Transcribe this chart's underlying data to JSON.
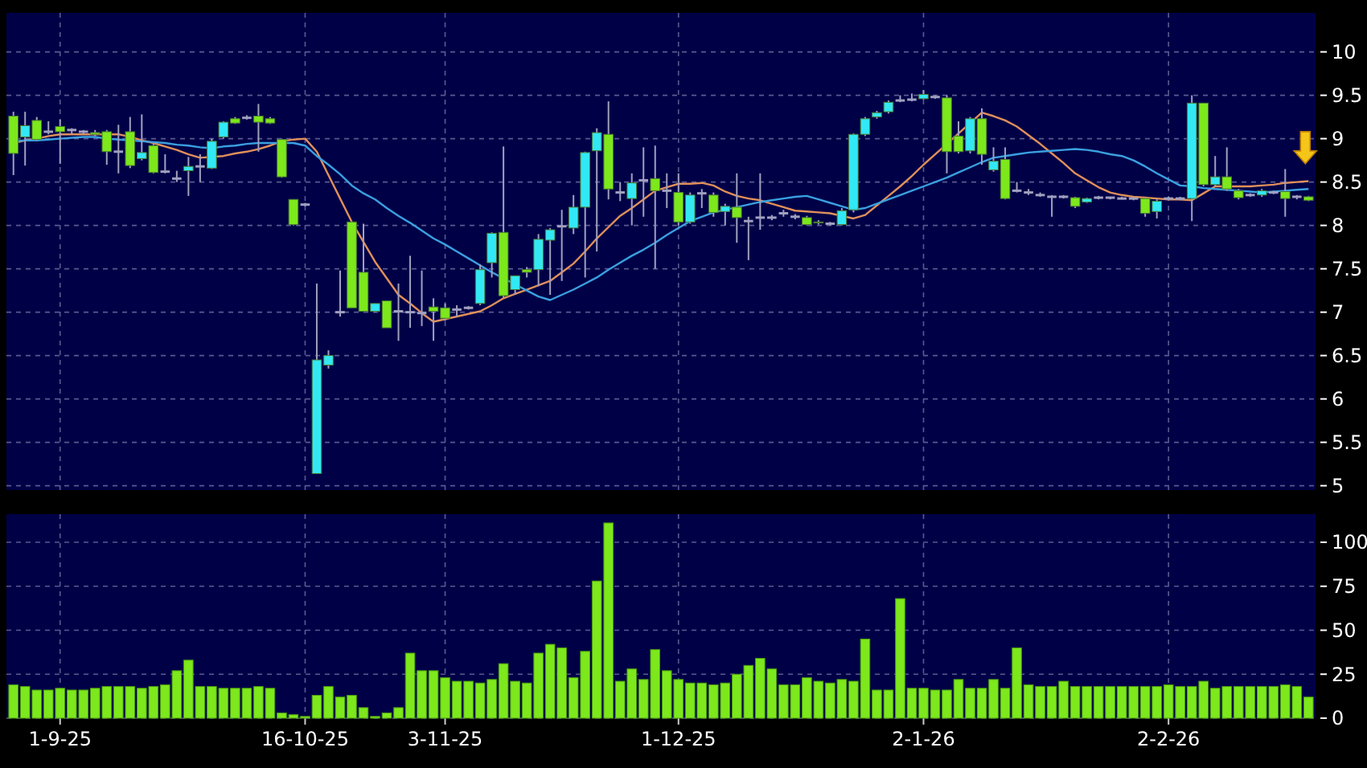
{
  "chart_data": [
    {
      "type": "candlestick",
      "categories": [
        null,
        null,
        null,
        null,
        null,
        null,
        null,
        null,
        null,
        null,
        null,
        null,
        null,
        null,
        null,
        null,
        null,
        null,
        null,
        null,
        null,
        null,
        null,
        null,
        null,
        null,
        null,
        null,
        null,
        null,
        null,
        null,
        null,
        null,
        null,
        null,
        null,
        null,
        null,
        null,
        null,
        null,
        null,
        null,
        null,
        null,
        null,
        null,
        null,
        null,
        null,
        null,
        null,
        null,
        null,
        null,
        null,
        null,
        null,
        null,
        null,
        null,
        null,
        null,
        null,
        null,
        null,
        null,
        null,
        null,
        null,
        null,
        null,
        null,
        null,
        null,
        null,
        null,
        null,
        null,
        null,
        null,
        null,
        null,
        null,
        null,
        null,
        null,
        null,
        null,
        null,
        null,
        null,
        null,
        null,
        null,
        null,
        null,
        null,
        null,
        null,
        null,
        null,
        null,
        null,
        null,
        null,
        null,
        null,
        null,
        null,
        null
      ],
      "ohlc": [
        [
          9.26,
          9.31,
          8.58,
          8.83
        ],
        [
          9.02,
          9.31,
          8.69,
          9.15
        ],
        [
          9.21,
          9.25,
          8.98,
          8.99
        ],
        [
          9.08,
          9.2,
          9.05,
          9.08
        ],
        [
          9.14,
          9.22,
          8.71,
          9.08
        ],
        [
          9.1,
          9.12,
          9.05,
          9.1
        ],
        [
          9.08,
          9.1,
          9.05,
          9.08
        ],
        [
          9.07,
          9.1,
          9.03,
          9.05
        ],
        [
          9.08,
          9.1,
          8.7,
          8.85
        ],
        [
          8.85,
          9.16,
          8.6,
          8.85
        ],
        [
          9.08,
          9.25,
          8.66,
          8.69
        ],
        [
          8.77,
          9.28,
          8.75,
          8.84
        ],
        [
          8.92,
          8.94,
          8.6,
          8.61
        ],
        [
          8.62,
          8.82,
          8.6,
          8.62
        ],
        [
          8.54,
          8.63,
          8.5,
          8.54
        ],
        [
          8.63,
          8.79,
          8.34,
          8.68
        ],
        [
          8.68,
          8.82,
          8.5,
          8.68
        ],
        [
          8.66,
          9.0,
          8.65,
          8.97
        ],
        [
          9.02,
          9.2,
          9.0,
          9.19
        ],
        [
          9.23,
          9.25,
          9.17,
          9.18
        ],
        [
          9.24,
          9.27,
          9.22,
          9.24
        ],
        [
          9.26,
          9.4,
          8.85,
          9.19
        ],
        [
          9.23,
          9.25,
          9.17,
          9.18
        ],
        [
          8.99,
          9.0,
          8.55,
          8.56
        ],
        [
          8.3,
          8.3,
          8.0,
          8.01
        ],
        [
          8.24,
          8.26,
          8.22,
          8.24
        ],
        [
          5.14,
          7.33,
          5.14,
          6.45
        ],
        [
          6.39,
          6.56,
          6.35,
          6.5
        ],
        [
          7.0,
          7.48,
          6.95,
          7.0
        ],
        [
          8.04,
          8.04,
          7.05,
          7.05
        ],
        [
          7.46,
          8.02,
          7.01,
          7.01
        ],
        [
          7.01,
          7.1,
          7.0,
          7.1
        ],
        [
          7.13,
          7.13,
          6.82,
          6.82
        ],
        [
          7.01,
          7.33,
          6.67,
          7.01
        ],
        [
          7.0,
          7.65,
          6.82,
          7.0
        ],
        [
          6.99,
          7.48,
          6.84,
          6.99
        ],
        [
          7.06,
          7.16,
          6.67,
          7.01
        ],
        [
          7.05,
          7.1,
          6.9,
          6.93
        ],
        [
          7.03,
          7.08,
          6.95,
          7.03
        ],
        [
          7.05,
          7.07,
          7.03,
          7.05
        ],
        [
          7.1,
          7.55,
          7.08,
          7.49
        ],
        [
          7.57,
          7.92,
          7.4,
          7.91
        ],
        [
          7.92,
          8.91,
          7.17,
          7.19
        ],
        [
          7.26,
          7.42,
          7.2,
          7.42
        ],
        [
          7.49,
          7.52,
          7.4,
          7.46
        ],
        [
          7.49,
          7.9,
          7.3,
          7.84
        ],
        [
          7.83,
          7.97,
          7.2,
          7.95
        ],
        [
          7.99,
          8.18,
          7.36,
          7.99
        ],
        [
          7.97,
          8.35,
          7.9,
          8.21
        ],
        [
          8.21,
          8.85,
          7.4,
          8.84
        ],
        [
          8.86,
          9.12,
          7.7,
          9.07
        ],
        [
          9.05,
          9.43,
          8.3,
          8.42
        ],
        [
          8.38,
          8.5,
          8.28,
          8.38
        ],
        [
          8.31,
          8.6,
          8.0,
          8.49
        ],
        [
          8.52,
          8.9,
          8.1,
          8.52
        ],
        [
          8.54,
          8.92,
          7.5,
          8.4
        ],
        [
          8.4,
          8.6,
          8.2,
          8.4
        ],
        [
          8.38,
          8.6,
          8.0,
          8.04
        ],
        [
          8.04,
          8.38,
          8.02,
          8.35
        ],
        [
          8.37,
          8.42,
          8.2,
          8.37
        ],
        [
          8.35,
          8.38,
          8.1,
          8.15
        ],
        [
          8.16,
          8.25,
          8.0,
          8.22
        ],
        [
          8.21,
          8.6,
          7.8,
          8.09
        ],
        [
          8.05,
          8.1,
          7.6,
          8.05
        ],
        [
          8.09,
          8.6,
          7.95,
          8.09
        ],
        [
          8.09,
          8.12,
          8.06,
          8.09
        ],
        [
          8.14,
          8.18,
          8.1,
          8.14
        ],
        [
          8.1,
          8.13,
          8.07,
          8.1
        ],
        [
          8.09,
          8.11,
          8.0,
          8.01
        ],
        [
          8.04,
          8.06,
          8.01,
          8.03
        ],
        [
          8.02,
          8.04,
          8.0,
          8.02
        ],
        [
          8.01,
          8.2,
          8.0,
          8.17
        ],
        [
          8.18,
          9.06,
          8.15,
          9.05
        ],
        [
          9.05,
          9.25,
          9.03,
          9.23
        ],
        [
          9.25,
          9.32,
          9.23,
          9.3
        ],
        [
          9.31,
          9.44,
          9.29,
          9.42
        ],
        [
          9.44,
          9.5,
          9.42,
          9.44
        ],
        [
          9.45,
          9.52,
          9.43,
          9.45
        ],
        [
          9.46,
          9.56,
          9.45,
          9.51
        ],
        [
          9.48,
          9.5,
          9.46,
          9.48
        ],
        [
          9.47,
          9.5,
          8.6,
          8.85
        ],
        [
          9.03,
          9.2,
          8.83,
          8.85
        ],
        [
          8.86,
          9.25,
          8.83,
          9.23
        ],
        [
          9.23,
          9.35,
          8.7,
          8.82
        ],
        [
          8.64,
          8.9,
          8.62,
          8.74
        ],
        [
          8.76,
          8.9,
          8.3,
          8.31
        ],
        [
          8.4,
          8.5,
          8.38,
          8.4
        ],
        [
          8.38,
          8.42,
          8.35,
          8.38
        ],
        [
          8.35,
          8.38,
          8.33,
          8.35
        ],
        [
          8.33,
          8.35,
          8.1,
          8.33
        ],
        [
          8.33,
          8.35,
          8.31,
          8.33
        ],
        [
          8.32,
          8.33,
          8.2,
          8.22
        ],
        [
          8.27,
          8.32,
          8.26,
          8.31
        ],
        [
          8.32,
          8.34,
          8.3,
          8.32
        ],
        [
          8.32,
          8.33,
          8.3,
          8.32
        ],
        [
          8.31,
          8.33,
          8.3,
          8.31
        ],
        [
          8.31,
          8.32,
          8.29,
          8.31
        ],
        [
          8.31,
          8.32,
          8.1,
          8.14
        ],
        [
          8.16,
          8.3,
          8.08,
          8.28
        ],
        [
          8.31,
          8.33,
          8.29,
          8.31
        ],
        [
          8.31,
          8.33,
          8.29,
          8.31
        ],
        [
          8.31,
          9.5,
          8.05,
          9.41
        ],
        [
          9.41,
          9.41,
          8.45,
          8.47
        ],
        [
          8.47,
          8.8,
          8.45,
          8.56
        ],
        [
          8.56,
          8.9,
          8.4,
          8.42
        ],
        [
          8.4,
          8.42,
          8.3,
          8.32
        ],
        [
          8.35,
          8.37,
          8.33,
          8.35
        ],
        [
          8.35,
          8.42,
          8.33,
          8.4
        ],
        [
          8.38,
          8.4,
          8.36,
          8.38
        ],
        [
          8.39,
          8.65,
          8.1,
          8.31
        ],
        [
          8.33,
          8.35,
          8.3,
          8.33
        ],
        [
          8.33,
          8.34,
          8.28,
          8.29
        ]
      ],
      "colors": [
        "#7de81c",
        "#33e8f5",
        "#7de81c",
        "#a0a0c0",
        "#7de81c",
        "#a0a0c0",
        "#a0a0c0",
        "#7de81c",
        "#7de81c",
        "#a0a0c0",
        "#7de81c",
        "#33e8f5",
        "#7de81c",
        "#a0a0c0",
        "#a0a0c0",
        "#33e8f5",
        "#a0a0c0",
        "#33e8f5",
        "#33e8f5",
        "#7de81c",
        "#a0a0c0",
        "#7de81c",
        "#7de81c",
        "#7de81c",
        "#7de81c",
        "#a0a0c0",
        "#33e8f5",
        "#33e8f5",
        "#a0a0c0",
        "#7de81c",
        "#7de81c",
        "#33e8f5",
        "#7de81c",
        "#a0a0c0",
        "#a0a0c0",
        "#a0a0c0",
        "#7de81c",
        "#7de81c",
        "#a0a0c0",
        "#a0a0c0",
        "#33e8f5",
        "#33e8f5",
        "#7de81c",
        "#33e8f5",
        "#7de81c",
        "#33e8f5",
        "#33e8f5",
        "#a0a0c0",
        "#33e8f5",
        "#33e8f5",
        "#33e8f5",
        "#7de81c",
        "#a0a0c0",
        "#33e8f5",
        "#a0a0c0",
        "#7de81c",
        "#a0a0c0",
        "#7de81c",
        "#33e8f5",
        "#a0a0c0",
        "#7de81c",
        "#33e8f5",
        "#7de81c",
        "#a0a0c0",
        "#a0a0c0",
        "#a0a0c0",
        "#a0a0c0",
        "#a0a0c0",
        "#7de81c",
        "#7de81c",
        "#a0a0c0",
        "#33e8f5",
        "#33e8f5",
        "#33e8f5",
        "#33e8f5",
        "#33e8f5",
        "#a0a0c0",
        "#a0a0c0",
        "#33e8f5",
        "#a0a0c0",
        "#7de81c",
        "#7de81c",
        "#33e8f5",
        "#7de81c",
        "#33e8f5",
        "#7de81c",
        "#a0a0c0",
        "#a0a0c0",
        "#a0a0c0",
        "#a0a0c0",
        "#a0a0c0",
        "#7de81c",
        "#33e8f5",
        "#a0a0c0",
        "#a0a0c0",
        "#a0a0c0",
        "#a0a0c0",
        "#7de81c",
        "#33e8f5",
        "#a0a0c0",
        "#a0a0c0",
        "#33e8f5",
        "#7de81c",
        "#33e8f5",
        "#7de81c",
        "#7de81c",
        "#a0a0c0",
        "#33e8f5",
        "#a0a0c0",
        "#7de81c",
        "#a0a0c0",
        "#7de81c"
      ],
      "series": [
        {
          "type": "line",
          "color": "#e0905a",
          "values": [
            8.95,
            8.98,
            9.0,
            9.03,
            9.05,
            9.05,
            9.05,
            9.05,
            9.05,
            9.05,
            9.02,
            8.98,
            8.95,
            8.91,
            8.87,
            8.82,
            8.78,
            8.79,
            8.8,
            8.83,
            8.85,
            8.88,
            8.92,
            8.97,
            8.99,
            9.0,
            8.85,
            8.58,
            8.31,
            8.04,
            7.81,
            7.58,
            7.39,
            7.2,
            7.1,
            6.99,
            6.89,
            6.92,
            6.95,
            6.98,
            7.01,
            7.08,
            7.16,
            7.21,
            7.26,
            7.31,
            7.36,
            7.46,
            7.56,
            7.7,
            7.85,
            7.98,
            8.11,
            8.2,
            8.3,
            8.4,
            8.44,
            8.48,
            8.48,
            8.49,
            8.46,
            8.39,
            8.34,
            8.31,
            8.29,
            8.25,
            8.21,
            8.17,
            8.16,
            8.15,
            8.14,
            8.11,
            8.08,
            8.12,
            8.23,
            8.34,
            8.45,
            8.57,
            8.7,
            8.82,
            8.94,
            9.06,
            9.18,
            9.3,
            9.26,
            9.21,
            9.14,
            9.04,
            8.94,
            8.83,
            8.72,
            8.6,
            8.52,
            8.44,
            8.38,
            8.35,
            8.33,
            8.32,
            8.31,
            8.3,
            8.3,
            8.29,
            8.37,
            8.45,
            8.45,
            8.45,
            8.45,
            8.46,
            8.47,
            8.49,
            8.5,
            8.51
          ]
        },
        {
          "type": "line",
          "color": "#3aa0e0",
          "values": [
            8.97,
            8.98,
            8.98,
            8.99,
            9.0,
            9.01,
            9.02,
            9.02,
            9.0,
            8.99,
            8.98,
            8.97,
            8.96,
            8.95,
            8.93,
            8.92,
            8.9,
            8.89,
            8.91,
            8.92,
            8.94,
            8.95,
            8.95,
            8.95,
            8.95,
            8.92,
            8.8,
            8.7,
            8.59,
            8.46,
            8.37,
            8.3,
            8.2,
            8.11,
            8.03,
            7.94,
            7.85,
            7.78,
            7.7,
            7.62,
            7.54,
            7.46,
            7.39,
            7.32,
            7.25,
            7.18,
            7.14,
            7.2,
            7.26,
            7.33,
            7.4,
            7.49,
            7.57,
            7.65,
            7.72,
            7.8,
            7.89,
            7.97,
            8.05,
            8.1,
            8.15,
            8.18,
            8.21,
            8.24,
            8.27,
            8.29,
            8.31,
            8.33,
            8.34,
            8.3,
            8.26,
            8.22,
            8.18,
            8.2,
            8.25,
            8.3,
            8.35,
            8.4,
            8.45,
            8.5,
            8.55,
            8.61,
            8.67,
            8.73,
            8.78,
            8.8,
            8.82,
            8.84,
            8.85,
            8.86,
            8.87,
            8.88,
            8.87,
            8.85,
            8.82,
            8.8,
            8.75,
            8.68,
            8.6,
            8.53,
            8.46,
            8.45,
            8.43,
            8.42,
            8.41,
            8.4,
            8.39,
            8.38,
            8.39,
            8.4,
            8.41,
            8.42
          ]
        }
      ],
      "ylim": [
        4.95,
        10.45
      ],
      "yticks": [
        5,
        5.5,
        6,
        6.5,
        7,
        7.5,
        8,
        8.5,
        9,
        9.5,
        10
      ],
      "grid": true,
      "tick_labels": "y"
    },
    {
      "type": "bar",
      "categories": [
        null,
        null,
        null,
        null,
        "1-9-25",
        null,
        null,
        null,
        null,
        null,
        null,
        null,
        null,
        null,
        null,
        null,
        null,
        null,
        null,
        null,
        null,
        null,
        null,
        null,
        null,
        "16-10-25",
        null,
        null,
        null,
        null,
        null,
        null,
        null,
        null,
        null,
        null,
        null,
        "3-11-25",
        null,
        null,
        null,
        null,
        null,
        null,
        null,
        null,
        null,
        null,
        null,
        null,
        null,
        null,
        null,
        null,
        null,
        null,
        null,
        "1-12-25",
        null,
        null,
        null,
        null,
        null,
        null,
        null,
        null,
        null,
        null,
        null,
        null,
        null,
        null,
        null,
        null,
        null,
        null,
        null,
        null,
        "2-1-26",
        null,
        null,
        null,
        null,
        null,
        null,
        null,
        null,
        null,
        null,
        null,
        null,
        null,
        null,
        null,
        null,
        null,
        null,
        null,
        null,
        "2-2-26",
        null,
        null,
        null,
        null,
        null,
        null,
        null,
        null,
        null,
        null,
        null,
        null
      ],
      "values": [
        19,
        18,
        16,
        16,
        17,
        16,
        16,
        17,
        18,
        18,
        18,
        17,
        18,
        19,
        27,
        33,
        18,
        18,
        17,
        17,
        17,
        18,
        17,
        3,
        2,
        1,
        13,
        18,
        12,
        13,
        6,
        1,
        3,
        6,
        37,
        27,
        27,
        23,
        21,
        21,
        20,
        22,
        31,
        21,
        20,
        37,
        42,
        40,
        23,
        38,
        78,
        111,
        21,
        28,
        22,
        39,
        27,
        22,
        20,
        20,
        19,
        20,
        25,
        30,
        34,
        28,
        19,
        19,
        23,
        21,
        20,
        22,
        21,
        45,
        16,
        16,
        68,
        17,
        17,
        16,
        16,
        22,
        17,
        17,
        22,
        17,
        40,
        19,
        18,
        18,
        21,
        18,
        18,
        18,
        18,
        18,
        18,
        18,
        18,
        19,
        18,
        18,
        21,
        17,
        18,
        18,
        18,
        18,
        18,
        19,
        18,
        12
      ],
      "color": "#7de81c",
      "ylim": [
        0,
        116
      ],
      "yticks": [
        0,
        25,
        50,
        75,
        100
      ],
      "grid": true
    }
  ]
}
